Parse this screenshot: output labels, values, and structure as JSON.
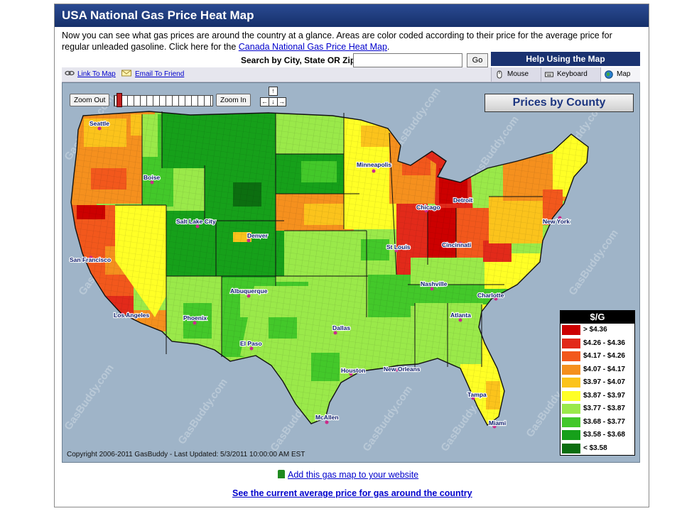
{
  "page": {
    "title": "USA National Gas Price Heat Map",
    "intro_text": "Now you can see what gas prices are around the country at a glance. Areas are color coded according to their price for the average price for regular unleaded gasoline. Click here for the",
    "intro_link": "Canada National Gas Price Heat Map",
    "intro_end": "."
  },
  "search": {
    "label": "Search by City, State OR Zip:",
    "value": "",
    "go_label": "Go"
  },
  "help": {
    "label": "Help Using the Map"
  },
  "toolbar": {
    "link_to_map": "Link To Map",
    "email_to_friend": "Email To Friend",
    "tabs": [
      "Mouse",
      "Keyboard",
      "Map"
    ],
    "active_tab": "Map"
  },
  "map": {
    "zoom_out_label": "Zoom Out",
    "zoom_in_label": "Zoom In",
    "arrows": {
      "up": "↑",
      "left": "←",
      "down": "↓",
      "right": "→"
    },
    "prices_by_county": "Prices by County",
    "watermark": "GasBuddy.com",
    "copyright": "Copyright 2006-2011 GasBuddy - Last Updated: 5/3/2011 10:00:00 AM EST",
    "cities": [
      "Seattle",
      "Boise",
      "Salt Lake City",
      "Denver",
      "San Francisco",
      "Los Angeles",
      "Phoenix",
      "Albuquerque",
      "El Paso",
      "Minneapolis",
      "Chicago",
      "Detroit",
      "St Louis",
      "Cincinnati",
      "New York",
      "Nashville",
      "Charlotte",
      "Atlanta",
      "Dallas",
      "Houston",
      "New Orleans",
      "Tampa",
      "Miami",
      "McAllen"
    ]
  },
  "legend": {
    "title": "$/G",
    "items": [
      {
        "label": "> $4.36",
        "color": "#cc0000"
      },
      {
        "label": "$4.26 - $4.36",
        "color": "#e22a1a"
      },
      {
        "label": "$4.17 - $4.26",
        "color": "#f2581c"
      },
      {
        "label": "$4.07 - $4.17",
        "color": "#f5901e"
      },
      {
        "label": "$3.97 - $4.07",
        "color": "#fbc31c"
      },
      {
        "label": "$3.87 - $3.97",
        "color": "#ffff26"
      },
      {
        "label": "$3.77 - $3.87",
        "color": "#9ae94a"
      },
      {
        "label": "$3.68 - $3.77",
        "color": "#43c82a"
      },
      {
        "label": "$3.58 - $3.68",
        "color": "#16a01a"
      },
      {
        "label": "< $3.58",
        "color": "#0c6e10"
      }
    ]
  },
  "footer": {
    "add_map_link": "Add this gas map to your website",
    "avg_price_link": "See the current average price for gas around the country"
  }
}
